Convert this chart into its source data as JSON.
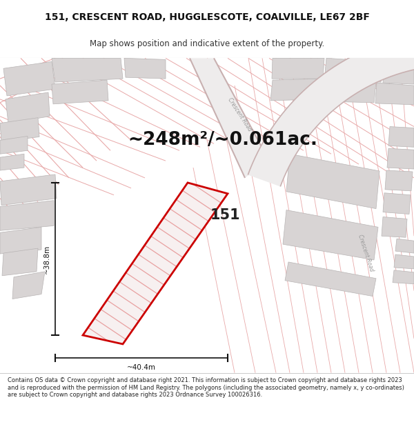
{
  "title_line1": "151, CRESCENT ROAD, HUGGLESCOTE, COALVILLE, LE67 2BF",
  "title_line2": "Map shows position and indicative extent of the property.",
  "area_label": "~248m²/~0.061ac.",
  "plot_number": "151",
  "dim_height": "~38.8m",
  "dim_width": "~40.4m",
  "footer_text": "Contains OS data © Crown copyright and database right 2021. This information is subject to Crown copyright and database rights 2023 and is reproduced with the permission of HM Land Registry. The polygons (including the associated geometry, namely x, y co-ordinates) are subject to Crown copyright and database rights 2023 Ordnance Survey 100026316.",
  "map_bg": "#f7f5f5",
  "road_color": "#e8a8a8",
  "building_fill": "#d8d4d4",
  "building_edge": "#b8b4b4",
  "plot_line_color": "#cc0000",
  "hatch_line_color": "#e8a0a0",
  "hatch_fill": "#f7f0f0",
  "title_fontsize": 10,
  "subtitle_fontsize": 8.5,
  "area_fontsize": 19,
  "dim_fontsize": 7.5,
  "footer_fontsize": 6.0
}
